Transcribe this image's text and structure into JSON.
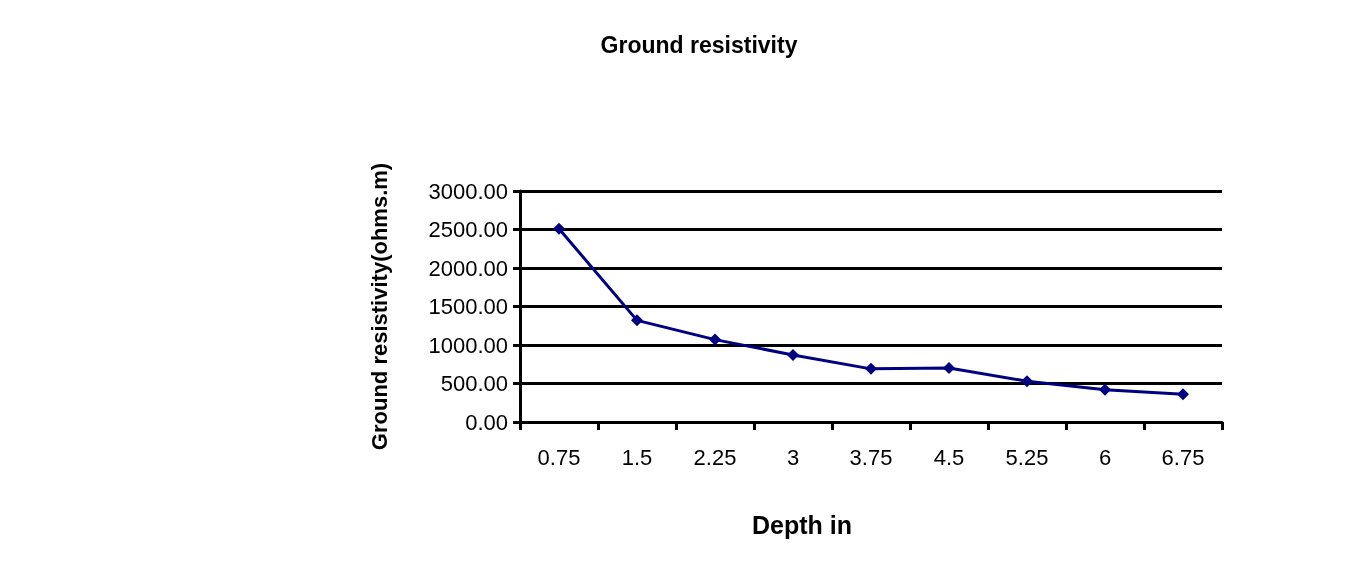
{
  "chart_data": {
    "type": "line",
    "title": "Ground resistivity",
    "xlabel": "Depth in",
    "ylabel": "Ground resistivity(ohms.m)",
    "categories": [
      "0.75",
      "1.5",
      "2.25",
      "3",
      "3.75",
      "4.5",
      "5.25",
      "6",
      "6.75"
    ],
    "series": [
      {
        "color": "#000080",
        "values": [
          2510,
          1320,
          1070,
          870,
          690,
          700,
          530,
          420,
          360
        ]
      }
    ],
    "ylim": [
      0,
      3000
    ],
    "yticks": [
      {
        "value": 0,
        "label": "0.00"
      },
      {
        "value": 500,
        "label": "500.00"
      },
      {
        "value": 1000,
        "label": "1000.00"
      },
      {
        "value": 1500,
        "label": "1500.00"
      },
      {
        "value": 2000,
        "label": "2000.00"
      },
      {
        "value": 2500,
        "label": "2500.00"
      },
      {
        "value": 3000,
        "label": "3000.00"
      }
    ],
    "grid": "y",
    "marker": "diamond",
    "line_style": "solid"
  }
}
